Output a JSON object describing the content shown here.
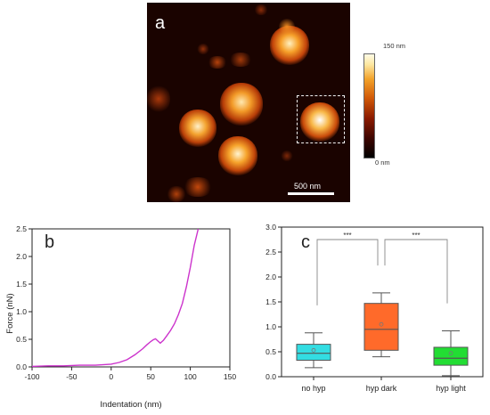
{
  "panels": {
    "a": {
      "letter": "a",
      "scale_bar": "500 nm",
      "colorbar": {
        "max_label": "150 nm",
        "min_label": "0 nm"
      }
    },
    "b": {
      "letter": "b"
    },
    "c": {
      "letter": "c"
    }
  },
  "chart_data": [
    {
      "type": "line",
      "panel": "b",
      "xlabel": "Indentation (nm)",
      "ylabel": "Force (nN)",
      "xlim": [
        -100,
        150
      ],
      "ylim": [
        0,
        2.5
      ],
      "xticks": [
        -100,
        -50,
        0,
        50,
        100,
        150
      ],
      "yticks": [
        0.0,
        0.5,
        1.0,
        1.5,
        2.0,
        2.5
      ],
      "line_color": "#cc33cc",
      "grid": false,
      "x": [
        -100,
        -80,
        -60,
        -40,
        -20,
        0,
        10,
        20,
        30,
        40,
        45,
        50,
        53,
        56,
        59,
        62,
        66,
        70,
        75,
        80,
        85,
        90,
        95,
        100,
        105,
        110
      ],
      "y": [
        0.01,
        0.02,
        0.02,
        0.03,
        0.03,
        0.05,
        0.08,
        0.13,
        0.22,
        0.33,
        0.4,
        0.46,
        0.49,
        0.51,
        0.47,
        0.43,
        0.48,
        0.56,
        0.66,
        0.78,
        0.95,
        1.15,
        1.45,
        1.8,
        2.2,
        2.5
      ]
    },
    {
      "type": "box",
      "panel": "c",
      "categories": [
        "no hyp",
        "hyp dark",
        "hyp light"
      ],
      "ylim": [
        0,
        3.0
      ],
      "yticks": [
        0.0,
        0.5,
        1.0,
        1.5,
        2.0,
        2.5,
        3.0
      ],
      "colors": [
        "#33dde2",
        "#ff6a2a",
        "#22dd33"
      ],
      "boxes": [
        {
          "whisker_low": 0.18,
          "q1": 0.33,
          "median": 0.47,
          "q3": 0.65,
          "whisker_high": 0.88,
          "mean": 0.53
        },
        {
          "whisker_low": 0.4,
          "q1": 0.53,
          "median": 0.95,
          "q3": 1.47,
          "whisker_high": 1.68,
          "mean": 1.05
        },
        {
          "whisker_low": 0.02,
          "q1": 0.23,
          "median": 0.37,
          "q3": 0.59,
          "whisker_high": 0.92,
          "mean": 0.47
        }
      ],
      "significance": [
        {
          "from": 0,
          "to": 1,
          "label": "***"
        },
        {
          "from": 1,
          "to": 2,
          "label": "***"
        }
      ]
    }
  ]
}
